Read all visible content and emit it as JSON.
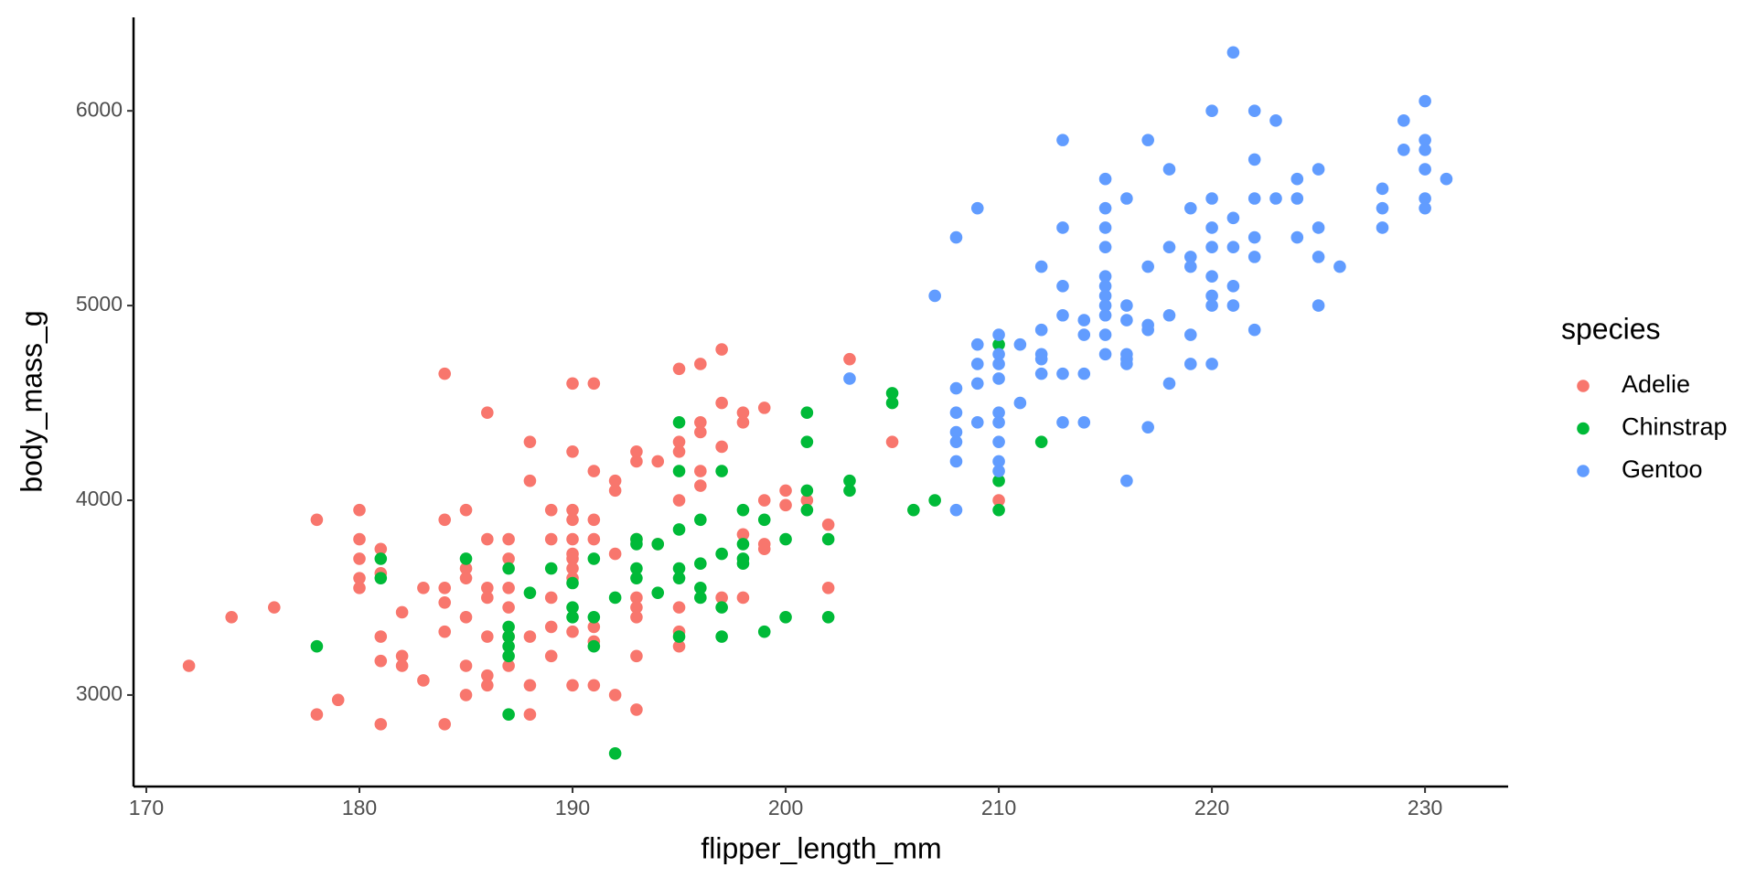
{
  "chart_data": {
    "type": "scatter",
    "x_label": "flipper_length_mm",
    "y_label": "body_mass_g",
    "legend_title": "species",
    "legend_position": "right",
    "grid": false,
    "xlim": [
      169.4,
      233.9
    ],
    "ylim": [
      2530,
      6480
    ],
    "xticks": [
      170,
      180,
      190,
      200,
      210,
      220,
      230
    ],
    "yticks": [
      3000,
      4000,
      5000,
      6000
    ],
    "series": [
      {
        "name": "Adelie",
        "color": "#F8766D",
        "x": [
          172,
          174,
          176,
          178,
          178,
          179,
          180,
          180,
          180,
          180,
          180,
          181,
          181,
          181,
          181,
          181,
          182,
          182,
          182,
          183,
          183,
          184,
          184,
          184,
          184,
          184,
          184,
          185,
          185,
          185,
          185,
          185,
          185,
          186,
          186,
          186,
          186,
          186,
          186,
          186,
          187,
          187,
          187,
          187,
          187,
          187,
          188,
          188,
          188,
          188,
          188,
          189,
          189,
          189,
          189,
          189,
          190,
          190,
          190,
          190,
          190,
          190,
          190,
          190,
          190,
          190,
          190,
          191,
          191,
          191,
          191,
          191,
          191,
          191,
          192,
          192,
          192,
          192,
          193,
          193,
          193,
          193,
          193,
          193,
          193,
          193,
          194,
          194,
          195,
          195,
          195,
          195,
          195,
          195,
          195,
          196,
          196,
          196,
          196,
          196,
          197,
          197,
          197,
          197,
          198,
          198,
          198,
          198,
          199,
          199,
          199,
          199,
          200,
          200,
          201,
          202,
          202,
          203,
          205,
          210
        ],
        "y": [
          3150,
          3400,
          3450,
          3900,
          2900,
          2975,
          3950,
          3800,
          3700,
          3600,
          3550,
          3750,
          3625,
          3300,
          3175,
          2850,
          3425,
          3200,
          3150,
          3550,
          3075,
          4650,
          3900,
          3550,
          3475,
          3325,
          2850,
          3950,
          3650,
          3600,
          3400,
          3150,
          3000,
          4450,
          3800,
          3550,
          3500,
          3300,
          3100,
          3050,
          3800,
          3700,
          3550,
          3450,
          3300,
          3150,
          4300,
          4100,
          3300,
          3050,
          2900,
          3950,
          3800,
          3500,
          3350,
          3200,
          4600,
          4250,
          3950,
          3900,
          3800,
          3725,
          3700,
          3650,
          3600,
          3325,
          3050,
          4600,
          4150,
          3900,
          3800,
          3350,
          3275,
          3050,
          4100,
          4050,
          3725,
          3000,
          4250,
          4200,
          3800,
          3500,
          3450,
          3400,
          3200,
          2925,
          4200,
          3775,
          4675,
          4300,
          4250,
          4000,
          3450,
          3325,
          3250,
          4700,
          4400,
          4350,
          4150,
          4075,
          4775,
          4500,
          4275,
          3500,
          4450,
          4400,
          3825,
          3500,
          4475,
          4000,
          3775,
          3750,
          4050,
          3975,
          4000,
          3875,
          3550,
          4725,
          4300,
          4000
        ]
      },
      {
        "name": "Chinstrap",
        "color": "#00BA38",
        "x": [
          178,
          181,
          181,
          185,
          187,
          187,
          187,
          187,
          187,
          187,
          188,
          189,
          190,
          190,
          190,
          191,
          191,
          191,
          192,
          192,
          193,
          193,
          193,
          193,
          194,
          194,
          195,
          195,
          195,
          195,
          195,
          195,
          196,
          196,
          196,
          196,
          197,
          197,
          197,
          197,
          198,
          198,
          198,
          198,
          199,
          199,
          200,
          200,
          201,
          201,
          201,
          201,
          202,
          202,
          203,
          203,
          205,
          205,
          206,
          207,
          210,
          210,
          210,
          212
        ],
        "y": [
          3250,
          3700,
          3600,
          3700,
          3650,
          3350,
          3300,
          3250,
          3200,
          2900,
          3525,
          3650,
          3575,
          3450,
          3400,
          3700,
          3400,
          3250,
          3500,
          2700,
          3800,
          3775,
          3650,
          3600,
          3775,
          3525,
          4400,
          4150,
          3850,
          3650,
          3600,
          3300,
          3900,
          3675,
          3550,
          3500,
          4150,
          3725,
          3450,
          3300,
          3950,
          3775,
          3700,
          3675,
          3900,
          3325,
          3800,
          3400,
          4450,
          4300,
          4050,
          3950,
          3800,
          3400,
          4100,
          4050,
          4550,
          4500,
          3950,
          4000,
          4800,
          4100,
          3950,
          4300
        ]
      },
      {
        "name": "Gentoo",
        "color": "#619CFF",
        "x": [
          203,
          207,
          208,
          208,
          208,
          208,
          208,
          208,
          208,
          209,
          209,
          209,
          209,
          209,
          210,
          210,
          210,
          210,
          210,
          210,
          210,
          210,
          210,
          211,
          211,
          212,
          212,
          212,
          212,
          212,
          213,
          213,
          213,
          213,
          213,
          213,
          214,
          214,
          214,
          214,
          215,
          215,
          215,
          215,
          215,
          215,
          215,
          215,
          215,
          215,
          215,
          216,
          216,
          216,
          216,
          216,
          216,
          216,
          217,
          217,
          217,
          217,
          217,
          218,
          218,
          218,
          218,
          219,
          219,
          219,
          219,
          219,
          220,
          220,
          220,
          220,
          220,
          220,
          220,
          220,
          221,
          221,
          221,
          221,
          221,
          222,
          222,
          222,
          222,
          222,
          222,
          223,
          223,
          224,
          224,
          224,
          225,
          225,
          225,
          225,
          226,
          228,
          228,
          228,
          229,
          229,
          230,
          230,
          230,
          230,
          230,
          230,
          231
        ],
        "y": [
          4625,
          5050,
          5350,
          4575,
          4450,
          4350,
          4300,
          4200,
          3950,
          5500,
          4800,
          4700,
          4600,
          4400,
          4850,
          4750,
          4700,
          4625,
          4450,
          4400,
          4300,
          4200,
          4150,
          4800,
          4500,
          5200,
          4875,
          4750,
          4725,
          4650,
          5850,
          5400,
          5100,
          4950,
          4650,
          4400,
          4925,
          4850,
          4650,
          4400,
          5650,
          5500,
          5400,
          5300,
          5150,
          5100,
          5050,
          5000,
          4950,
          4850,
          4750,
          5550,
          5000,
          4925,
          4750,
          4725,
          4700,
          4100,
          5850,
          5200,
          4900,
          4875,
          4375,
          5700,
          5300,
          4950,
          4600,
          5500,
          5250,
          5200,
          4850,
          4700,
          6000,
          5550,
          5400,
          5300,
          5150,
          5050,
          5000,
          4700,
          6300,
          5450,
          5300,
          5100,
          5000,
          6000,
          5750,
          5550,
          5350,
          5250,
          4875,
          5950,
          5550,
          5650,
          5550,
          5350,
          5700,
          5400,
          5250,
          5000,
          5200,
          5600,
          5500,
          5400,
          5950,
          5800,
          6050,
          5850,
          5800,
          5700,
          5550,
          5500,
          5650
        ]
      }
    ]
  }
}
